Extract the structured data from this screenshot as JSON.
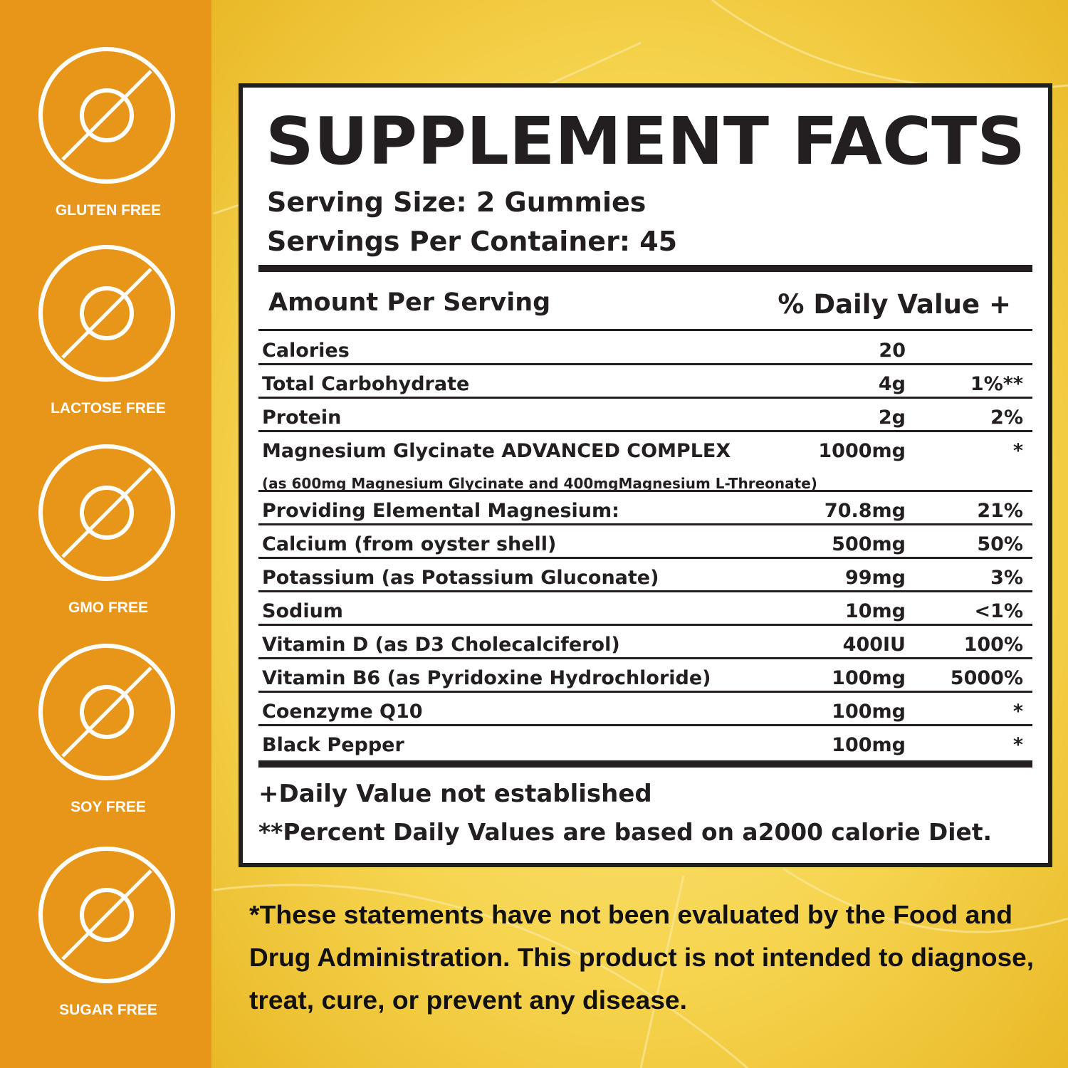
{
  "badges": [
    "GLUTEN FREE",
    "LACTOSE FREE",
    "GMO FREE",
    "SOY FREE",
    "SUGAR FREE"
  ],
  "facts": {
    "title": "SUPPLEMENT FACTS",
    "serving_size": "Serving Size: 2 Gummies",
    "servings_per_container": "Servings Per Container: 45",
    "amount_header": "Amount Per Serving",
    "dv_header": "% Daily Value +",
    "rows": [
      {
        "name": "Calories",
        "amount": "20"
      },
      {
        "name": "Total Carbohydrate",
        "amount": "4g",
        "dv": "1%**"
      },
      {
        "name": "Protein",
        "amount": "2g",
        "dv": "2%"
      },
      {
        "name": "Magnesium Glycinate ADVANCED COMPLEX",
        "sub": "(as 600mg Magnesium Glycinate and 400mgMagnesium L-Threonate)",
        "amount": "1000mg",
        "dv": "*"
      },
      {
        "name": "Providing Elemental Magnesium:",
        "amount": "70.8mg",
        "dv": "21%"
      },
      {
        "name": "Calcium (from oyster shell)",
        "amount": "500mg",
        "dv": "50%"
      },
      {
        "name": "Potassium (as Potassium Gluconate)",
        "amount": "99mg",
        "dv": "3%"
      },
      {
        "name": "Sodium",
        "amount": "10mg",
        "dv": "<1%"
      },
      {
        "name": "Vitamin D (as D3 Cholecalciferol)",
        "amount": "400IU",
        "dv": "100%"
      },
      {
        "name": "Vitamin B6 (as Pyridoxine Hydrochloride)",
        "amount": "100mg",
        "dv": "5000%"
      },
      {
        "name": "Coenzyme Q10",
        "amount": "100mg",
        "dv": "*"
      },
      {
        "name": "Black Pepper",
        "amount": "100mg",
        "dv": "*"
      }
    ],
    "footnotes": [
      "+Daily Value not established",
      "**Percent Daily Values are based on a2000 calorie Diet."
    ]
  },
  "disclaimer": [
    "*These statements have not been evaluated by the Food and",
    "Drug Administration. This product is not intended to diagnose,",
    "treat, cure, or prevent any disease."
  ]
}
